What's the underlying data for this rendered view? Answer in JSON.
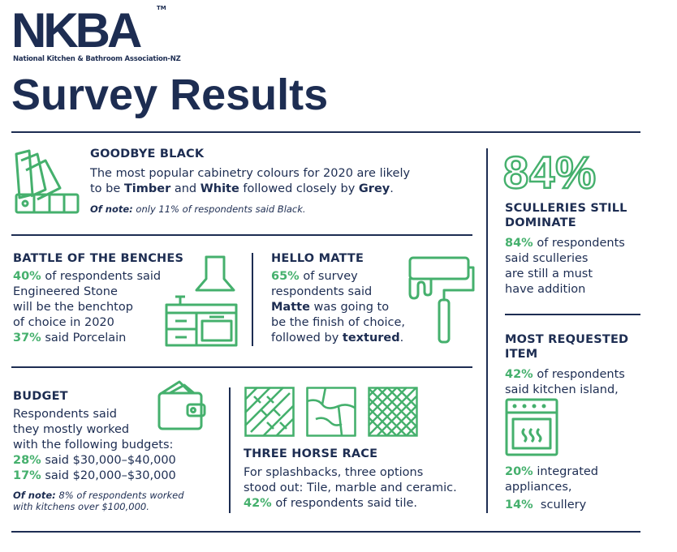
{
  "header": {
    "logo": "NKBA",
    "trademark": "TM",
    "association": "National Kitchen & Bathroom Association-NZ",
    "title": "Survey Results"
  },
  "goodbye_black": {
    "heading": "GOODBYE BLACK",
    "line1": "The most popular cabinetry colours for 2020 are likely",
    "line2_pre": "to be ",
    "timber": "Timber",
    "and": " and ",
    "white": "White",
    "followed": " followed closely by ",
    "grey": "Grey",
    "period": ".",
    "note_label": "Of note:",
    "note_text": " only 11% of respondents said Black."
  },
  "benches": {
    "heading": "BATTLE OF THE BENCHES",
    "pct": "40%",
    "line1": " of respondents said",
    "line2": "Engineered Stone",
    "line3": "will be the benchtop",
    "line4": "of choice in 2020",
    "pct2": "37%",
    "line5": " said Porcelain"
  },
  "matte": {
    "heading": "HELLO MATTE",
    "pct": "65%",
    "line1": " of survey",
    "line2": "respondents said",
    "matte": "Matte",
    "line3": " was going to",
    "line4": "be the finish of choice,",
    "line5_pre": "followed by ",
    "textured": "textured",
    "period": "."
  },
  "budget": {
    "heading": "BUDGET",
    "line1": "Respondents said",
    "line2": "they mostly worked",
    "line3": "with the following budgets:",
    "pct1": "28%",
    "range1": " said $30,000–$40,000",
    "pct2": "17%",
    "range2": " said $20,000–$30,000",
    "note_label": "Of note:",
    "note1": " 8% of respondents worked",
    "note2": "with kitchens over $100,000."
  },
  "horse": {
    "heading": "THREE HORSE RACE",
    "line1": "For splashbacks, three options",
    "line2": "stood out: Tile, marble and ceramic.",
    "pct": "42%",
    "line3": " of respondents said tile."
  },
  "sculleries": {
    "big": "84%",
    "heading1": "SCULLERIES STILL",
    "heading2": "DOMINATE",
    "pct": "84%",
    "line1": " of respondents",
    "line2": "said sculleries",
    "line3": "are still a must",
    "line4": "have addition"
  },
  "requested": {
    "heading1": "MOST REQUESTED",
    "heading2": "ITEM",
    "pct1": "42%",
    "line1": " of respondents",
    "line2": "said kitchen island,",
    "pct2": "20%",
    "line3": " integrated",
    "line4": "appliances,",
    "pct3": "14%",
    "line5": "  scullery"
  },
  "colors": {
    "navy": "#1d2d52",
    "green": "#45b06d"
  },
  "icons": [
    "colour-swatch-icon",
    "kitchen-cabinet-icon",
    "paint-roller-icon",
    "wallet-icon",
    "tile-icon",
    "oven-icon"
  ]
}
